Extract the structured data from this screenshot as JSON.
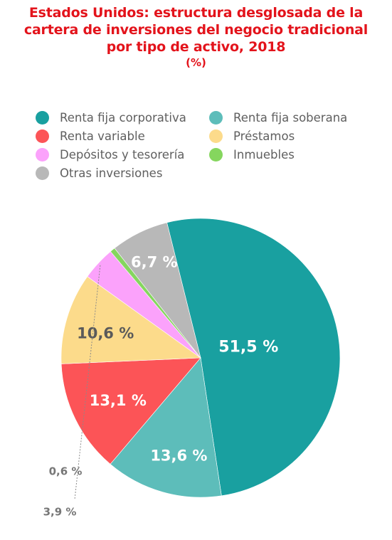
{
  "chart_data": {
    "type": "pie",
    "title": "Estados Unidos: estructura desglosada de la cartera de inversiones del negocio tradicional por tipo de activo, 2018",
    "title_lines": [
      "Estados Unidos: estructura desglosada de la",
      "cartera de inversiones del negocio tradicional",
      "por tipo de activo, 2018"
    ],
    "subtitle": "(%)",
    "legend_position": "top",
    "slices": [
      {
        "label": "Renta fija corporativa",
        "value": 51.5,
        "value_label": "51,5 %",
        "color": "#19a0a0"
      },
      {
        "label": "Renta fija soberana",
        "value": 13.6,
        "value_label": "13,6 %",
        "color": "#5dbdba"
      },
      {
        "label": "Renta variable",
        "value": 13.1,
        "value_label": "13,1 %",
        "color": "#fc5457"
      },
      {
        "label": "Préstamos",
        "value": 10.6,
        "value_label": "10,6 %",
        "color": "#fcdb8b"
      },
      {
        "label": "Depósitos y tesorería",
        "value": 3.9,
        "value_label": "3,9 %",
        "color": "#fba2fb"
      },
      {
        "label": "Inmuebles",
        "value": 0.6,
        "value_label": "0,6 %",
        "color": "#85d65e"
      },
      {
        "label": "Otras inversiones",
        "value": 6.7,
        "value_label": "6,7 %",
        "color": "#b8b8b8"
      }
    ],
    "label_color_inside": "#ffffff",
    "label_color_dark": "#5a5a5a",
    "label_color_outside": "#777777"
  }
}
